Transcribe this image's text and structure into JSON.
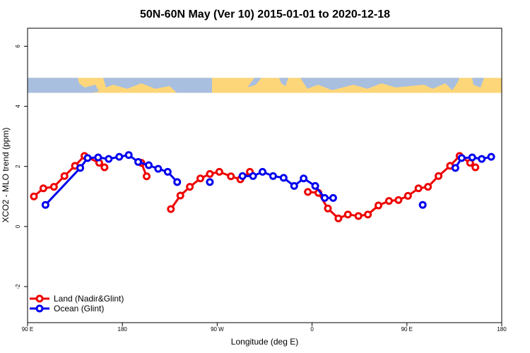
{
  "chart_data": {
    "type": "line",
    "title": "50N-60N May (Ver 10)   2015-01-01 to 2020-12-18",
    "xlabel": "Longitude (deg E)",
    "ylabel": "XCO2 - MLO trend (ppm)",
    "xlim": [
      90,
      540
    ],
    "ylim": [
      -3.2,
      6.6
    ],
    "x_ticks": [
      {
        "value": 90,
        "label": "90 E"
      },
      {
        "value": 180,
        "label": "180"
      },
      {
        "value": 270,
        "label": "90 W"
      },
      {
        "value": 360,
        "label": "0"
      },
      {
        "value": 450,
        "label": "90 E"
      },
      {
        "value": 540,
        "label": "180"
      }
    ],
    "y_ticks": [
      {
        "value": -2,
        "label": "-2"
      },
      {
        "value": 0,
        "label": "0"
      },
      {
        "value": 2,
        "label": "2"
      },
      {
        "value": 4,
        "label": "4"
      },
      {
        "value": 6,
        "label": "6"
      }
    ],
    "map_band": {
      "y_from": 4.45,
      "y_to": 4.95
    },
    "legend_position": "bottom-left",
    "series": [
      {
        "name": "Land (Nadir&Glint)",
        "color": "#ee0000",
        "segments": [
          [
            [
              96,
              1.0
            ],
            [
              105,
              1.27
            ],
            [
              115,
              1.32
            ],
            [
              125,
              1.68
            ],
            [
              135,
              2.02
            ],
            [
              144,
              2.35
            ],
            [
              158,
              2.12
            ],
            [
              163,
              1.97
            ]
          ],
          [
            [
              198,
              2.12
            ],
            [
              203,
              1.67
            ]
          ],
          [
            [
              226,
              0.58
            ],
            [
              235,
              1.03
            ],
            [
              244,
              1.32
            ],
            [
              254,
              1.6
            ],
            [
              263,
              1.75
            ],
            [
              272,
              1.82
            ],
            [
              283,
              1.67
            ],
            [
              292,
              1.57
            ],
            [
              301,
              1.82
            ]
          ],
          [
            [
              356,
              1.15
            ],
            [
              366,
              1.12
            ],
            [
              375,
              0.6
            ],
            [
              385,
              0.27
            ],
            [
              394,
              0.4
            ],
            [
              404,
              0.35
            ],
            [
              413,
              0.4
            ],
            [
              423,
              0.7
            ],
            [
              433,
              0.85
            ],
            [
              442,
              0.88
            ],
            [
              451,
              1.02
            ],
            [
              461,
              1.27
            ],
            [
              470,
              1.32
            ],
            [
              480,
              1.68
            ],
            [
              491,
              2.02
            ],
            [
              500,
              2.35
            ],
            [
              510,
              2.12
            ],
            [
              515,
              1.97
            ]
          ]
        ]
      },
      {
        "name": "Ocean (Glint)",
        "color": "#0000ee",
        "segments": [
          [
            [
              107,
              0.72
            ],
            [
              140,
              1.95
            ],
            [
              147,
              2.28
            ],
            [
              157,
              2.3
            ],
            [
              167,
              2.25
            ],
            [
              177,
              2.32
            ],
            [
              186,
              2.38
            ],
            [
              195,
              2.15
            ],
            [
              205,
              2.04
            ],
            [
              214,
              1.92
            ],
            [
              223,
              1.82
            ],
            [
              232,
              1.48
            ]
          ],
          [
            [
              263,
              1.48
            ]
          ],
          [
            [
              294,
              1.68
            ],
            [
              304,
              1.68
            ],
            [
              313,
              1.82
            ],
            [
              323,
              1.68
            ],
            [
              333,
              1.62
            ],
            [
              343,
              1.35
            ],
            [
              352,
              1.6
            ],
            [
              363,
              1.35
            ],
            [
              372,
              0.95
            ],
            [
              380,
              0.95
            ]
          ],
          [
            [
              465,
              0.72
            ]
          ],
          [
            [
              496,
              1.95
            ],
            [
              502,
              2.28
            ],
            [
              512,
              2.3
            ],
            [
              521,
              2.25
            ],
            [
              530,
              2.32
            ]
          ]
        ]
      }
    ]
  }
}
